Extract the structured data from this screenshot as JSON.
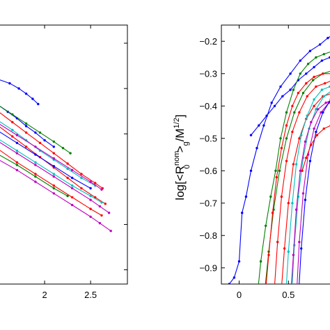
{
  "chart_data": [
    {
      "type": "line",
      "xlim": [
        1.5,
        2.9
      ],
      "ylim": [
        0,
        1
      ],
      "xticks": [
        2,
        2.5
      ],
      "xtick_labels": [
        "2",
        "2.5"
      ],
      "yticks": [],
      "grid": false,
      "series": [
        {
          "color": "#0000ff",
          "x": [
            1.5,
            1.62,
            1.72,
            1.8,
            1.87,
            1.93
          ],
          "y": [
            0.79,
            0.775,
            0.755,
            0.735,
            0.715,
            0.695
          ]
        },
        {
          "color": "#0000ff",
          "x": [
            1.5,
            1.6,
            1.7,
            1.8,
            1.9,
            2.0,
            2.1
          ],
          "y": [
            0.69,
            0.665,
            0.64,
            0.61,
            0.585,
            0.555,
            0.53
          ]
        },
        {
          "color": "#008000",
          "x": [
            1.5,
            1.65,
            1.8,
            1.95,
            2.1,
            2.2,
            2.28
          ],
          "y": [
            0.69,
            0.655,
            0.62,
            0.585,
            0.55,
            0.525,
            0.505
          ]
        },
        {
          "color": "#ff0000",
          "x": [
            1.5,
            1.65,
            1.8,
            1.95,
            2.1,
            2.25,
            2.4,
            2.55,
            2.63
          ],
          "y": [
            0.665,
            0.625,
            0.585,
            0.545,
            0.505,
            0.465,
            0.425,
            0.39,
            0.37
          ]
        },
        {
          "color": "#00bfbf",
          "x": [
            1.5,
            1.65,
            1.8,
            1.95,
            2.1,
            2.25,
            2.4,
            2.55
          ],
          "y": [
            0.63,
            0.595,
            0.555,
            0.515,
            0.48,
            0.445,
            0.41,
            0.38
          ]
        },
        {
          "color": "#bf00bf",
          "x": [
            1.5,
            1.7,
            1.9,
            2.1,
            2.3,
            2.5,
            2.62
          ],
          "y": [
            0.62,
            0.575,
            0.53,
            0.485,
            0.44,
            0.395,
            0.365
          ]
        },
        {
          "color": "#ff0000",
          "x": [
            1.5,
            1.65,
            1.8,
            1.95,
            2.1,
            2.25,
            2.4,
            2.55,
            2.66
          ],
          "y": [
            0.61,
            0.57,
            0.53,
            0.49,
            0.45,
            0.41,
            0.37,
            0.335,
            0.31
          ]
        },
        {
          "color": "#0000ff",
          "x": [
            1.5,
            1.7,
            1.9,
            2.1,
            2.3,
            2.5
          ],
          "y": [
            0.59,
            0.545,
            0.5,
            0.455,
            0.41,
            0.37
          ]
        },
        {
          "color": "#00bfbf",
          "x": [
            1.5,
            1.7,
            1.9,
            2.1,
            2.3,
            2.5,
            2.62
          ],
          "y": [
            0.56,
            0.515,
            0.47,
            0.425,
            0.38,
            0.34,
            0.315
          ]
        },
        {
          "color": "#bf00bf",
          "x": [
            1.5,
            1.7,
            1.9,
            2.1,
            2.3,
            2.5,
            2.6,
            2.7
          ],
          "y": [
            0.55,
            0.505,
            0.46,
            0.415,
            0.37,
            0.325,
            0.3,
            0.275
          ]
        },
        {
          "color": "#ff0000",
          "x": [
            1.5,
            1.7,
            1.9,
            2.1,
            2.3,
            2.5,
            2.62
          ],
          "y": [
            0.52,
            0.47,
            0.425,
            0.38,
            0.335,
            0.29,
            0.265
          ]
        },
        {
          "color": "#bf00bf",
          "x": [
            1.5,
            1.7,
            1.9,
            2.1,
            2.3,
            2.5,
            2.6,
            2.72
          ],
          "y": [
            0.48,
            0.44,
            0.395,
            0.35,
            0.305,
            0.26,
            0.235,
            0.205
          ]
        },
        {
          "color": "#008000",
          "x": [
            1.5,
            1.7,
            1.9,
            2.1,
            2.25
          ],
          "y": [
            0.5,
            0.46,
            0.415,
            0.37,
            0.34
          ]
        }
      ]
    },
    {
      "type": "line",
      "xlim": [
        -0.18,
        0.95
      ],
      "ylim": [
        -0.95,
        -0.15
      ],
      "xticks": [
        0,
        0.5
      ],
      "xtick_labels": [
        "0",
        "0.5"
      ],
      "yticks": [
        -0.2,
        -0.3,
        -0.4,
        -0.5,
        -0.6,
        -0.7,
        -0.8,
        -0.9
      ],
      "ytick_labels": [
        "-0.2",
        "-0.3",
        "-0.4",
        "-0.5",
        "-0.6",
        "-0.7",
        "-0.8",
        "-0.9"
      ],
      "ylabel_parts": {
        "a": "log[<R",
        "sup1": "nom",
        "sub1": "0",
        "b": ">",
        "sub2": "g",
        "c": "/M",
        "sup2": "1/2",
        "d": "]"
      },
      "grid": false,
      "series": [
        {
          "color": "#0000ff",
          "x": [
            -0.15,
            -0.1,
            -0.05,
            0.0,
            0.03,
            0.07,
            0.12,
            0.18,
            0.25,
            0.33,
            0.42,
            0.52,
            0.62,
            0.72,
            0.82,
            0.9,
            0.95
          ],
          "y": [
            -1.0,
            -0.95,
            -0.93,
            -0.88,
            -0.73,
            -0.68,
            -0.6,
            -0.53,
            -0.46,
            -0.39,
            -0.34,
            -0.3,
            -0.26,
            -0.23,
            -0.21,
            -0.19,
            -0.18
          ]
        },
        {
          "color": "#0000ff",
          "x": [
            0.12,
            0.2,
            0.28,
            0.36,
            0.44,
            0.52,
            0.6,
            0.68,
            0.76,
            0.84,
            0.92,
            0.95
          ],
          "y": [
            -0.49,
            -0.46,
            -0.43,
            -0.4,
            -0.37,
            -0.35,
            -0.32,
            -0.3,
            -0.28,
            -0.26,
            -0.25,
            -0.245
          ]
        },
        {
          "color": "#008000",
          "x": [
            0.18,
            0.22,
            0.27,
            0.32,
            0.37,
            0.42,
            0.48,
            0.55,
            0.62,
            0.7,
            0.78,
            0.86,
            0.95
          ],
          "y": [
            -1.0,
            -0.88,
            -0.77,
            -0.68,
            -0.6,
            -0.5,
            -0.42,
            -0.35,
            -0.3,
            -0.27,
            -0.25,
            -0.24,
            -0.23
          ]
        },
        {
          "color": "#008000",
          "x": [
            0.25,
            0.3,
            0.35,
            0.41,
            0.48,
            0.56,
            0.65,
            0.75,
            0.85,
            0.95
          ],
          "y": [
            -1.0,
            -0.85,
            -0.72,
            -0.6,
            -0.5,
            -0.42,
            -0.36,
            -0.32,
            -0.3,
            -0.29
          ]
        },
        {
          "color": "#ff0000",
          "x": [
            0.26,
            0.3,
            0.34,
            0.38,
            0.43,
            0.48,
            0.54,
            0.6,
            0.68,
            0.76,
            0.85,
            0.95
          ],
          "y": [
            -1.0,
            -0.86,
            -0.73,
            -0.62,
            -0.53,
            -0.46,
            -0.4,
            -0.36,
            -0.33,
            -0.31,
            -0.3,
            -0.3
          ]
        },
        {
          "color": "#ff0000",
          "x": [
            0.35,
            0.39,
            0.43,
            0.48,
            0.54,
            0.61,
            0.69,
            0.78,
            0.87,
            0.95
          ],
          "y": [
            -1.0,
            -0.82,
            -0.68,
            -0.57,
            -0.48,
            -0.42,
            -0.37,
            -0.34,
            -0.33,
            -0.32
          ]
        },
        {
          "color": "#ff0000",
          "x": [
            0.42,
            0.46,
            0.5,
            0.55,
            0.61,
            0.68,
            0.76,
            0.85,
            0.95
          ],
          "y": [
            -1.0,
            -0.84,
            -0.7,
            -0.58,
            -0.5,
            -0.44,
            -0.4,
            -0.37,
            -0.36
          ]
        },
        {
          "color": "#00bfbf",
          "x": [
            0.47,
            0.5,
            0.54,
            0.58,
            0.63,
            0.69,
            0.76,
            0.84,
            0.92,
            0.95
          ],
          "y": [
            -1.0,
            -0.85,
            -0.7,
            -0.58,
            -0.49,
            -0.43,
            -0.38,
            -0.35,
            -0.34,
            -0.34
          ]
        },
        {
          "color": "#00bfbf",
          "x": [
            0.53,
            0.56,
            0.6,
            0.65,
            0.71,
            0.78,
            0.86,
            0.95
          ],
          "y": [
            -1.0,
            -0.83,
            -0.68,
            -0.56,
            -0.47,
            -0.41,
            -0.37,
            -0.35
          ]
        },
        {
          "color": "#bf00bf",
          "x": [
            0.52,
            0.55,
            0.58,
            0.62,
            0.67,
            0.73,
            0.8,
            0.88,
            0.95
          ],
          "y": [
            -1.0,
            -0.86,
            -0.72,
            -0.6,
            -0.51,
            -0.45,
            -0.41,
            -0.39,
            -0.38
          ]
        },
        {
          "color": "#bf00bf",
          "x": [
            0.58,
            0.61,
            0.65,
            0.7,
            0.76,
            0.83,
            0.91,
            0.95
          ],
          "y": [
            -1.0,
            -0.82,
            -0.67,
            -0.55,
            -0.47,
            -0.42,
            -0.39,
            -0.38
          ]
        },
        {
          "color": "#0000ff",
          "x": [
            0.6,
            0.63,
            0.67,
            0.72,
            0.78,
            0.85,
            0.93,
            0.95
          ],
          "y": [
            -1.0,
            -0.84,
            -0.69,
            -0.57,
            -0.48,
            -0.42,
            -0.38,
            -0.37
          ]
        },
        {
          "color": "#ff0000",
          "x": [
            0.64,
            0.68,
            0.73,
            0.79,
            0.86,
            0.93
          ],
          "y": [
            -0.6,
            -0.56,
            -0.52,
            -0.49,
            -0.47,
            -0.46
          ]
        }
      ]
    }
  ]
}
